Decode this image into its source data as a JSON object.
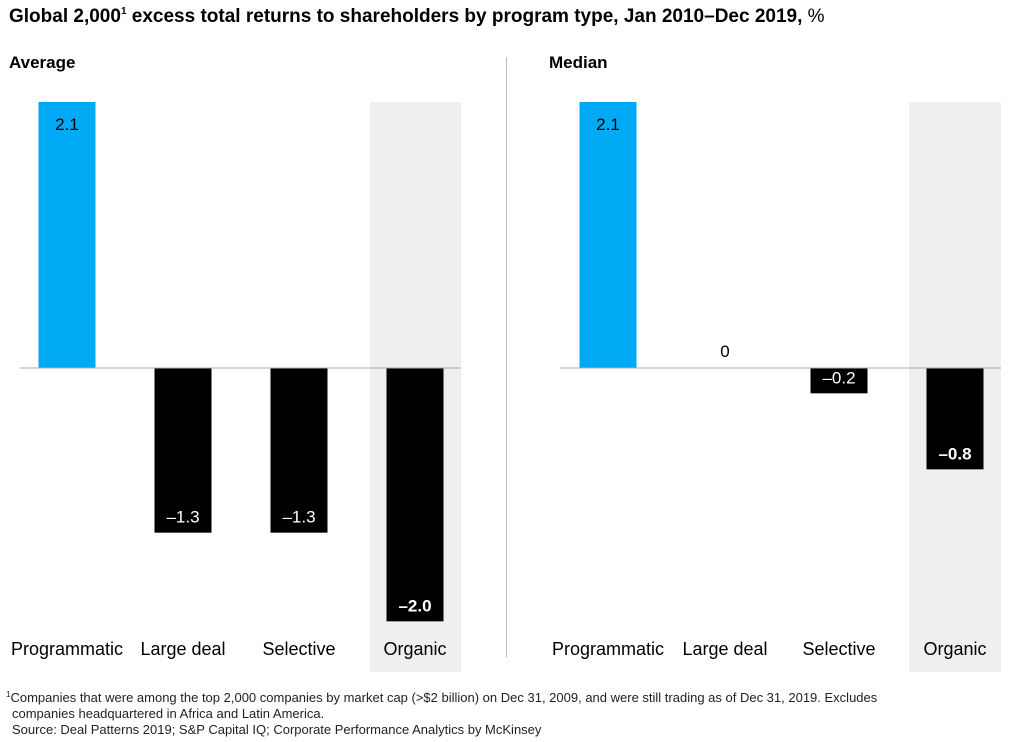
{
  "title": {
    "pre": "Global 2,000",
    "sup": "1",
    "main": " excess total returns to shareholders by program type, Jan 2010–Dec 2019,",
    "unit": " %"
  },
  "colors": {
    "highlight": "#00a9f4",
    "bar": "#000000",
    "shade": "#efefef",
    "axis": "#aaaaaa",
    "divider": "#bdbdbd"
  },
  "chart_data": [
    {
      "type": "bar",
      "title": "Average",
      "categories": [
        "Programmatic",
        "Large deal",
        "Selective",
        "Organic"
      ],
      "values": [
        2.1,
        -1.3,
        -1.3,
        -2.0
      ],
      "labels": [
        "2.1",
        "–1.3",
        "–1.3",
        "–2.0"
      ],
      "highlight_category": "Programmatic",
      "shaded_category": "Organic",
      "ylim": [
        -2.0,
        2.1
      ]
    },
    {
      "type": "bar",
      "title": "Median",
      "categories": [
        "Programmatic",
        "Large deal",
        "Selective",
        "Organic"
      ],
      "values": [
        2.1,
        0,
        -0.2,
        -0.8
      ],
      "labels": [
        "2.1",
        "0",
        "–0.2",
        "–0.8"
      ],
      "highlight_category": "Programmatic",
      "shaded_category": "Organic",
      "ylim": [
        -2.0,
        2.1
      ]
    }
  ],
  "footnote": {
    "sup": "1",
    "line1": "Companies that were among the top 2,000 companies by market cap (>$2 billion) on Dec 31, 2009, and were still trading as of Dec 31, 2019. Excludes",
    "line2": "companies headquartered in Africa and Latin America.",
    "source": "Source: Deal Patterns 2019; S&P Capital IQ; Corporate Performance Analytics by McKinsey"
  }
}
